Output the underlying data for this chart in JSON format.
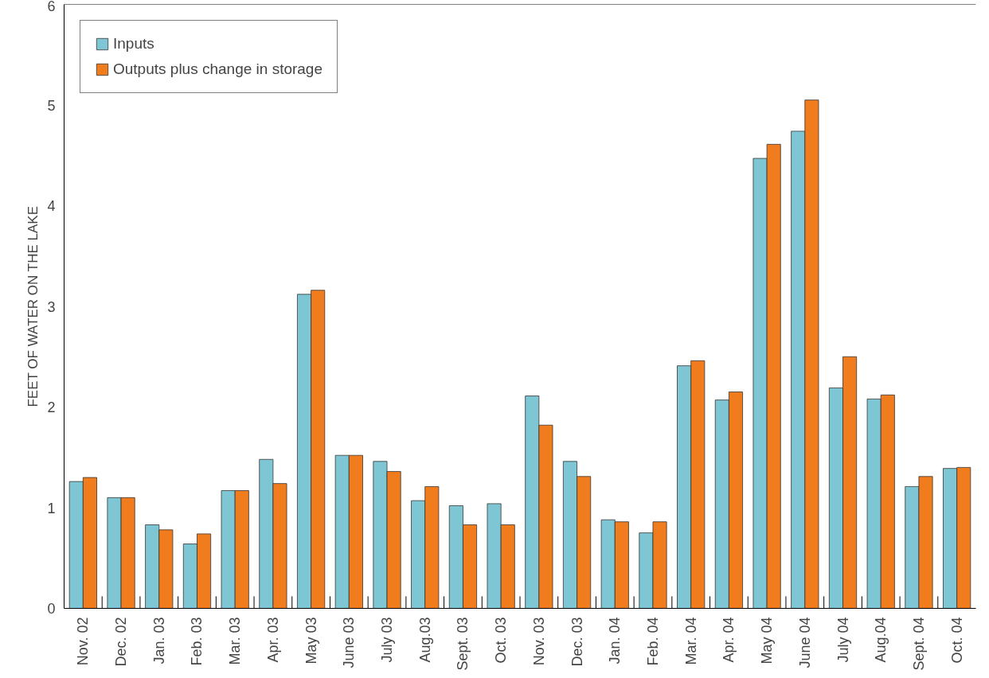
{
  "chart_data": {
    "type": "bar",
    "ylabel": "FEET OF WATER ON THE LAKE",
    "categories": [
      "Nov. 02",
      "Dec. 02",
      "Jan. 03",
      "Feb. 03",
      "Mar. 03",
      "Apr. 03",
      "May 03",
      "June 03",
      "July 03",
      "Aug.03",
      "Sept. 03",
      "Oct. 03",
      "Nov. 03",
      "Dec. 03",
      "Jan. 04",
      "Feb. 04",
      "Mar. 04",
      "Apr. 04",
      "May 04",
      "June 04",
      "July 04",
      "Aug.04",
      "Sept. 04",
      "Oct. 04"
    ],
    "series": [
      {
        "name": "Inputs",
        "color": "#7fc6d4",
        "values": [
          1.26,
          1.1,
          0.83,
          0.64,
          1.17,
          1.48,
          3.12,
          1.52,
          1.46,
          1.07,
          1.02,
          1.04,
          2.11,
          1.46,
          0.88,
          0.75,
          2.41,
          2.07,
          4.47,
          4.74,
          2.19,
          2.08,
          1.21,
          1.39
        ]
      },
      {
        "name": "Outputs plus change in storage",
        "color": "#f07c1e",
        "values": [
          1.3,
          1.1,
          0.78,
          0.74,
          1.17,
          1.24,
          3.16,
          1.52,
          1.36,
          1.21,
          0.83,
          0.83,
          1.82,
          1.31,
          0.86,
          0.86,
          2.46,
          2.15,
          4.61,
          5.05,
          2.5,
          2.12,
          1.31,
          1.4
        ]
      }
    ],
    "ylim": [
      0,
      6
    ],
    "yticks": [
      0,
      1,
      2,
      3,
      4,
      5,
      6
    ],
    "grid": false,
    "legend": "top left"
  }
}
